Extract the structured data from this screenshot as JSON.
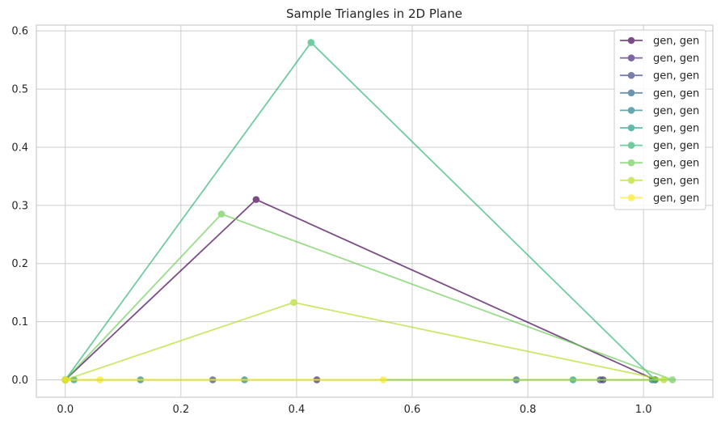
{
  "chart_data": {
    "type": "line",
    "title": "Sample Triangles in 2D Plane",
    "xlabel": "",
    "ylabel": "",
    "xlim": [
      -0.05,
      1.12
    ],
    "ylim": [
      -0.03,
      0.61
    ],
    "xticks": [
      0.0,
      0.2,
      0.4,
      0.6,
      0.8,
      1.0
    ],
    "xtick_labels": [
      "0.0",
      "0.2",
      "0.4",
      "0.6",
      "0.8",
      "1.0"
    ],
    "yticks": [
      0.0,
      0.1,
      0.2,
      0.3,
      0.4,
      0.5,
      0.6
    ],
    "ytick_labels": [
      "0.0",
      "0.1",
      "0.2",
      "0.3",
      "0.4",
      "0.5",
      "0.6"
    ],
    "grid": true,
    "legend_position": "top-right",
    "series": [
      {
        "name": "gen, gen",
        "color": "#440154",
        "points": [
          [
            0,
            0
          ],
          [
            0.33,
            0.31
          ],
          [
            1.02,
            0
          ],
          [
            0,
            0
          ]
        ]
      },
      {
        "name": "gen, gen",
        "color": "#482878",
        "points": [
          [
            0,
            0
          ],
          [
            0.435,
            0
          ],
          [
            0.93,
            0
          ],
          [
            0,
            0
          ]
        ]
      },
      {
        "name": "gen, gen",
        "color": "#3e4989",
        "points": [
          [
            0,
            0
          ],
          [
            0.255,
            0
          ],
          [
            0.925,
            0
          ],
          [
            0,
            0
          ]
        ]
      },
      {
        "name": "gen, gen",
        "color": "#31688e",
        "points": [
          [
            0,
            0
          ],
          [
            0.78,
            0
          ],
          [
            1.015,
            0
          ],
          [
            0,
            0
          ]
        ]
      },
      {
        "name": "gen, gen",
        "color": "#26828e",
        "points": [
          [
            0,
            0
          ],
          [
            0.13,
            0
          ],
          [
            0.31,
            0
          ],
          [
            0,
            0
          ]
        ]
      },
      {
        "name": "gen, gen",
        "color": "#1f9e89",
        "points": [
          [
            0,
            0
          ],
          [
            0.015,
            0
          ],
          [
            0.878,
            0
          ],
          [
            0,
            0
          ]
        ]
      },
      {
        "name": "gen, gen",
        "color": "#35b779",
        "points": [
          [
            0,
            0
          ],
          [
            0.425,
            0.58
          ],
          [
            1.02,
            0
          ],
          [
            0,
            0
          ]
        ]
      },
      {
        "name": "gen, gen",
        "color": "#6ece58",
        "points": [
          [
            0,
            0
          ],
          [
            0.27,
            0.285
          ],
          [
            1.05,
            0
          ],
          [
            0,
            0
          ]
        ]
      },
      {
        "name": "gen, gen",
        "color": "#b5de2b",
        "points": [
          [
            0,
            0
          ],
          [
            0.395,
            0.133
          ],
          [
            1.035,
            0
          ],
          [
            0,
            0
          ]
        ]
      },
      {
        "name": "gen, gen",
        "color": "#fde725",
        "points": [
          [
            0,
            0
          ],
          [
            0.06,
            0
          ],
          [
            0.55,
            0
          ],
          [
            0,
            0
          ]
        ]
      }
    ]
  }
}
